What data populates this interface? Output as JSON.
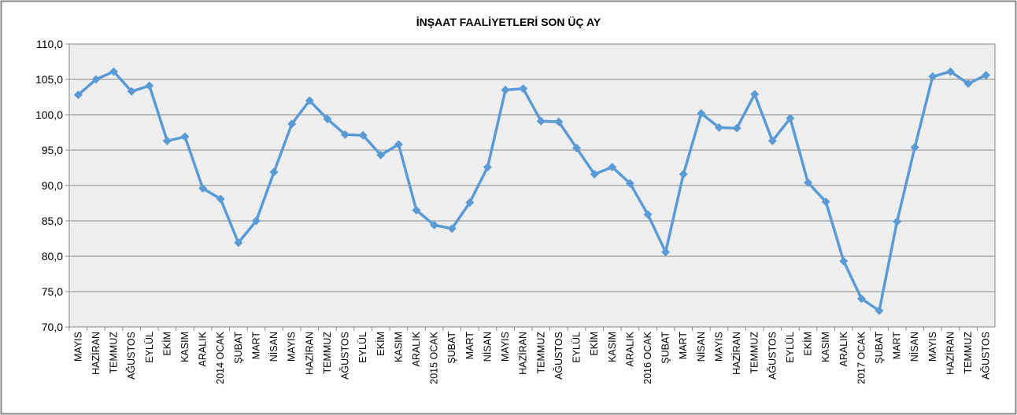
{
  "chart_data": {
    "type": "line",
    "title": "İNŞAAT FAALİYETLERİ SON ÜÇ AY",
    "categories": [
      "MAYIS",
      "HAZİRAN",
      "TEMMUZ",
      "AĞUSTOS",
      "EYLÜL",
      "EKİM",
      "KASIM",
      "ARALIK",
      "2014 OCAK",
      "ŞUBAT",
      "MART",
      "NİSAN",
      "MAYIS",
      "HAZİRAN",
      "TEMMUZ",
      "AĞUSTOS",
      "EYLÜL",
      "EKİM",
      "KASIM",
      "ARALIK",
      "2015 OCAK",
      "ŞUBAT",
      "MART",
      "NİSAN",
      "MAYIS",
      "HAZİRAN",
      "TEMMUZ",
      "AĞUSTOS",
      "EYLÜL",
      "EKİM",
      "KASIM",
      "ARALIK",
      "2016 OCAK",
      "ŞUBAT",
      "MART",
      "NİSAN",
      "MAYIS",
      "HAZİRAN",
      "TEMMUZ",
      "AĞUSTOS",
      "EYLÜL",
      "EKİM",
      "KASIM",
      "ARALIK",
      "2017 OCAK",
      "ŞUBAT",
      "MART",
      "NİSAN",
      "MAYIS",
      "HAZİRAN",
      "TEMMUZ",
      "AĞUSTOS"
    ],
    "values": [
      102.8,
      105.0,
      106.1,
      103.3,
      104.1,
      96.3,
      96.9,
      89.6,
      88.1,
      81.9,
      85.0,
      91.9,
      98.7,
      102.0,
      99.4,
      97.2,
      97.1,
      94.3,
      95.8,
      86.5,
      84.4,
      83.9,
      87.6,
      92.6,
      103.5,
      103.7,
      99.1,
      99.0,
      95.3,
      91.6,
      92.6,
      90.3,
      85.9,
      80.6,
      91.6,
      100.2,
      98.2,
      98.1,
      102.9,
      96.3,
      99.5,
      90.4,
      87.7,
      79.3,
      74.0,
      72.3,
      84.9,
      95.4,
      105.4,
      106.1,
      104.4,
      105.6
    ],
    "color": "#5b9bd5",
    "ylim": [
      70,
      110
    ],
    "yticks": [
      {
        "value": 70,
        "label": "70,0"
      },
      {
        "value": 75,
        "label": "75,0"
      },
      {
        "value": 80,
        "label": "80,0"
      },
      {
        "value": 85,
        "label": "85,0"
      },
      {
        "value": 90,
        "label": "90,0"
      },
      {
        "value": 95,
        "label": "95,0"
      },
      {
        "value": 100,
        "label": "100,0"
      },
      {
        "value": 105,
        "label": "105,0"
      },
      {
        "value": 110,
        "label": "110,0"
      }
    ],
    "grid": true
  }
}
